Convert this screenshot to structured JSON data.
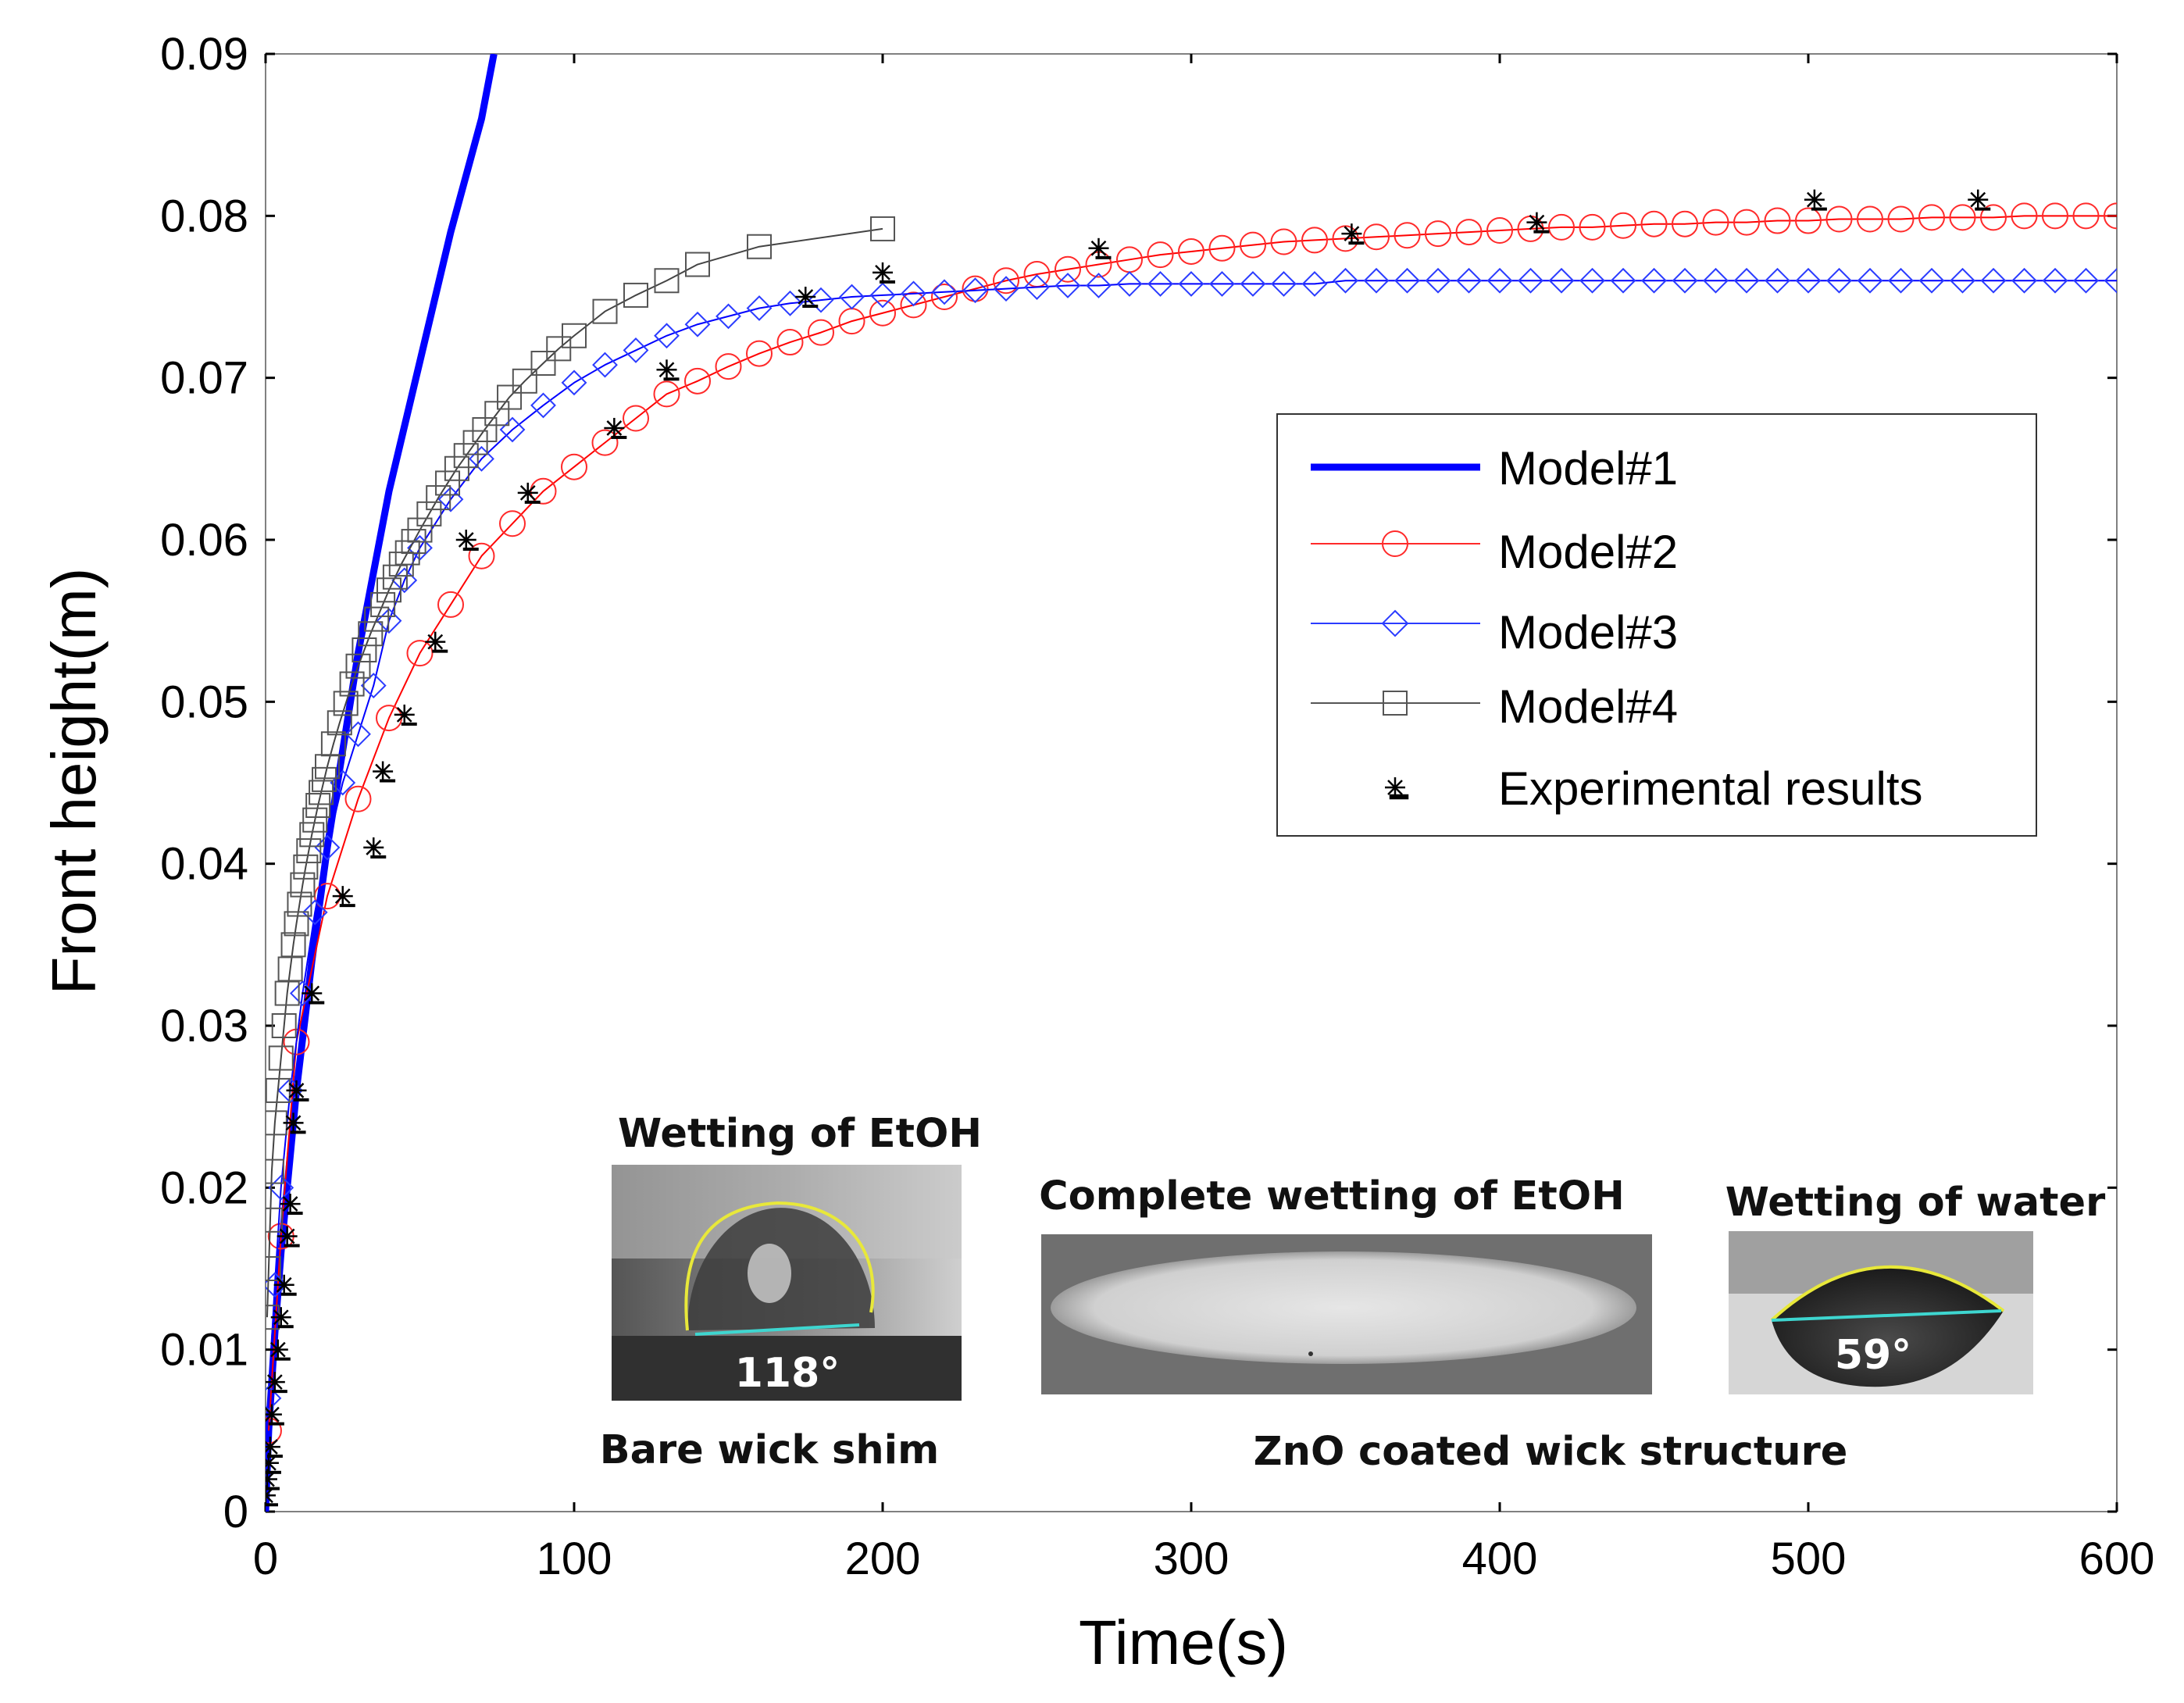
{
  "chart_data": {
    "type": "line",
    "title": "",
    "xlabel": "Time(s)",
    "ylabel": "Front height(m)",
    "xlim": [
      0,
      600
    ],
    "ylim": [
      0,
      0.09
    ],
    "xticks": [
      0,
      100,
      200,
      300,
      400,
      500,
      600
    ],
    "yticks": [
      0,
      0.01,
      0.02,
      0.03,
      0.04,
      0.05,
      0.06,
      0.07,
      0.08,
      0.09
    ],
    "xtick_labels": [
      "0",
      "100",
      "200",
      "300",
      "400",
      "500",
      "600"
    ],
    "ytick_labels": [
      "0",
      "0.01",
      "0.02",
      "0.03",
      "0.04",
      "0.05",
      "0.06",
      "0.07",
      "0.08",
      "0.09"
    ],
    "legend_position": "right",
    "series": [
      {
        "name": "Model#1",
        "marker": "none",
        "color": "#0000ff",
        "x": [
          0,
          1,
          2,
          3,
          5,
          7,
          10,
          15,
          20,
          25,
          30,
          40,
          50,
          60,
          70,
          74
        ],
        "y": [
          0,
          0.005,
          0.008,
          0.011,
          0.016,
          0.02,
          0.026,
          0.034,
          0.041,
          0.047,
          0.053,
          0.063,
          0.071,
          0.079,
          0.086,
          0.09
        ]
      },
      {
        "name": "Model#2",
        "marker": "circle",
        "color": "#ff0000",
        "x": [
          1,
          5,
          10,
          20,
          30,
          40,
          50,
          60,
          70,
          80,
          90,
          100,
          110,
          120,
          130,
          140,
          150,
          160,
          170,
          180,
          190,
          200,
          210,
          220,
          230,
          240,
          250,
          260,
          270,
          280,
          290,
          300,
          310,
          320,
          330,
          340,
          350,
          360,
          370,
          380,
          390,
          400,
          410,
          420,
          430,
          440,
          450,
          460,
          470,
          480,
          490,
          500,
          510,
          520,
          530,
          540,
          550,
          560,
          570,
          580,
          590,
          600
        ],
        "y": [
          0.005,
          0.017,
          0.029,
          0.038,
          0.044,
          0.049,
          0.053,
          0.056,
          0.059,
          0.061,
          0.063,
          0.0645,
          0.066,
          0.0675,
          0.069,
          0.0698,
          0.0707,
          0.0715,
          0.0722,
          0.0728,
          0.0735,
          0.074,
          0.0745,
          0.075,
          0.0755,
          0.076,
          0.0764,
          0.0767,
          0.077,
          0.0773,
          0.0776,
          0.0778,
          0.078,
          0.0782,
          0.0784,
          0.0785,
          0.0786,
          0.0787,
          0.0788,
          0.0789,
          0.079,
          0.0791,
          0.0792,
          0.0793,
          0.0793,
          0.0794,
          0.0795,
          0.0795,
          0.0796,
          0.0796,
          0.0797,
          0.0797,
          0.0798,
          0.0798,
          0.0798,
          0.0799,
          0.0799,
          0.0799,
          0.08,
          0.08,
          0.08,
          0.08
        ]
      },
      {
        "name": "Model#3",
        "marker": "diamond",
        "color": "#0000ff",
        "x": [
          1,
          3,
          5,
          8,
          12,
          16,
          20,
          25,
          30,
          35,
          40,
          45,
          50,
          60,
          70,
          80,
          90,
          100,
          110,
          120,
          130,
          140,
          150,
          160,
          170,
          180,
          190,
          200,
          210,
          220,
          230,
          240,
          250,
          260,
          270,
          280,
          290,
          300,
          310,
          320,
          330,
          340,
          350,
          360,
          370,
          380,
          390,
          400,
          410,
          420,
          430,
          440,
          450,
          460,
          470,
          480,
          490,
          500,
          510,
          520,
          530,
          540,
          550,
          560,
          570,
          580,
          590,
          600
        ],
        "y": [
          0.007,
          0.014,
          0.02,
          0.026,
          0.032,
          0.037,
          0.041,
          0.045,
          0.048,
          0.051,
          0.055,
          0.0575,
          0.0595,
          0.0625,
          0.065,
          0.0668,
          0.0683,
          0.0697,
          0.0708,
          0.0717,
          0.0726,
          0.0733,
          0.0738,
          0.0743,
          0.0746,
          0.0748,
          0.075,
          0.0751,
          0.0752,
          0.0753,
          0.0754,
          0.0755,
          0.0756,
          0.0757,
          0.0757,
          0.0758,
          0.0758,
          0.0758,
          0.0758,
          0.0758,
          0.0758,
          0.0758,
          0.076,
          0.076,
          0.076,
          0.076,
          0.076,
          0.076,
          0.076,
          0.076,
          0.076,
          0.076,
          0.076,
          0.076,
          0.076,
          0.076,
          0.076,
          0.076,
          0.076,
          0.076,
          0.076,
          0.076,
          0.076,
          0.076,
          0.076,
          0.076,
          0.076,
          0.076
        ]
      },
      {
        "name": "Model#4",
        "marker": "square",
        "color": "#444444",
        "x": [
          0.5,
          1,
          1.5,
          2,
          3,
          4,
          5,
          6,
          7,
          8,
          9,
          10,
          11,
          12,
          13,
          14,
          15,
          16,
          17,
          18,
          19,
          20,
          22,
          24,
          26,
          28,
          30,
          32,
          34,
          36,
          38,
          40,
          42,
          44,
          46,
          48,
          50,
          53,
          56,
          59,
          62,
          65,
          68,
          71,
          75,
          79,
          84,
          90,
          95,
          100,
          110,
          120,
          130,
          140,
          160,
          200
        ],
        "y": [
          0.012,
          0.015,
          0.018,
          0.021,
          0.024,
          0.026,
          0.028,
          0.03,
          0.032,
          0.0335,
          0.035,
          0.0363,
          0.0375,
          0.0387,
          0.0398,
          0.0408,
          0.0418,
          0.0427,
          0.0436,
          0.0444,
          0.0452,
          0.046,
          0.0474,
          0.0487,
          0.0499,
          0.0511,
          0.0522,
          0.0532,
          0.0542,
          0.0551,
          0.056,
          0.0569,
          0.0577,
          0.0585,
          0.0592,
          0.0599,
          0.0606,
          0.0616,
          0.0626,
          0.0635,
          0.0644,
          0.0652,
          0.066,
          0.0668,
          0.0678,
          0.0688,
          0.0698,
          0.0709,
          0.0718,
          0.0726,
          0.0741,
          0.0751,
          0.076,
          0.077,
          0.0781,
          0.0792
        ]
      },
      {
        "name": "Experimental results",
        "marker": "asterisk",
        "color": "#000000",
        "x": [
          0,
          0.5,
          1,
          1.5,
          2,
          3,
          4,
          5,
          6,
          7,
          8,
          9,
          10,
          15,
          25,
          35,
          38,
          45,
          55,
          65,
          85,
          113,
          130,
          175,
          200,
          270,
          352,
          412,
          502,
          555
        ],
        "y": [
          0.001,
          0.002,
          0.003,
          0.004,
          0.006,
          0.008,
          0.01,
          0.012,
          0.014,
          0.017,
          0.019,
          0.024,
          0.026,
          0.032,
          0.038,
          0.041,
          0.0457,
          0.0492,
          0.0537,
          0.06,
          0.0629,
          0.0669,
          0.0705,
          0.075,
          0.0765,
          0.078,
          0.0789,
          0.0796,
          0.081,
          0.081
        ]
      }
    ]
  },
  "insets": {
    "bare": {
      "caption": "Wetting  of  EtOH",
      "angle": "118°",
      "label": "Bare  wick  shim"
    },
    "complete": {
      "caption": "Complete  wetting  of  EtOH"
    },
    "water": {
      "caption": "Wetting  of  water",
      "angle": "59°"
    },
    "coated_label": "ZnO  coated  wick  structure"
  },
  "colors": {
    "model1": "#0000ff",
    "model2": "#ff2a2a",
    "model3": "#2b3cff",
    "model4": "#555555",
    "experimental": "#000000",
    "contact_line": "#e8e83a",
    "baseline": "#3ed6d0"
  }
}
